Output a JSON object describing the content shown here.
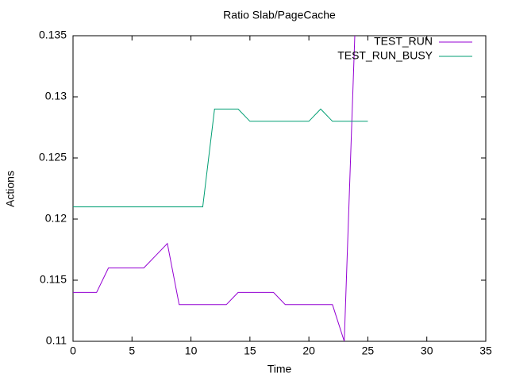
{
  "chart_data": {
    "type": "line",
    "title": "Ratio Slab/PageCache",
    "x_label": "Time",
    "y_label": "Actions",
    "xlim": [
      0,
      35
    ],
    "xticks": [
      0,
      5,
      10,
      15,
      20,
      25,
      30,
      35
    ],
    "ylim": [
      0.11,
      0.135
    ],
    "yticks": [
      0.11,
      0.115,
      0.12,
      0.125,
      0.13,
      0.135
    ],
    "legend": "top-right",
    "series": [
      {
        "name": "TEST_RUN",
        "color": "#9400d3",
        "x": [
          0,
          1,
          2,
          3,
          4,
          5,
          6,
          7,
          8,
          9,
          10,
          11,
          12,
          13,
          14,
          15,
          16,
          17,
          18,
          19,
          20,
          21,
          22,
          23,
          24
        ],
        "values": [
          0.114,
          0.114,
          0.114,
          0.116,
          0.116,
          0.116,
          0.116,
          0.117,
          0.118,
          0.113,
          0.113,
          0.113,
          0.113,
          0.113,
          0.114,
          0.114,
          0.114,
          0.114,
          0.113,
          0.113,
          0.113,
          0.113,
          0.113,
          0.11,
          0.138
        ]
      },
      {
        "name": "TEST_RUN_BUSY",
        "color": "#009e73",
        "x": [
          0,
          1,
          2,
          3,
          4,
          5,
          6,
          7,
          8,
          9,
          10,
          11,
          12,
          13,
          14,
          15,
          16,
          17,
          18,
          19,
          20,
          21,
          22,
          23,
          24,
          25
        ],
        "values": [
          0.121,
          0.121,
          0.121,
          0.121,
          0.121,
          0.121,
          0.121,
          0.121,
          0.121,
          0.121,
          0.121,
          0.121,
          0.129,
          0.129,
          0.129,
          0.128,
          0.128,
          0.128,
          0.128,
          0.128,
          0.128,
          0.129,
          0.128,
          0.128,
          0.128,
          0.128
        ]
      }
    ]
  }
}
